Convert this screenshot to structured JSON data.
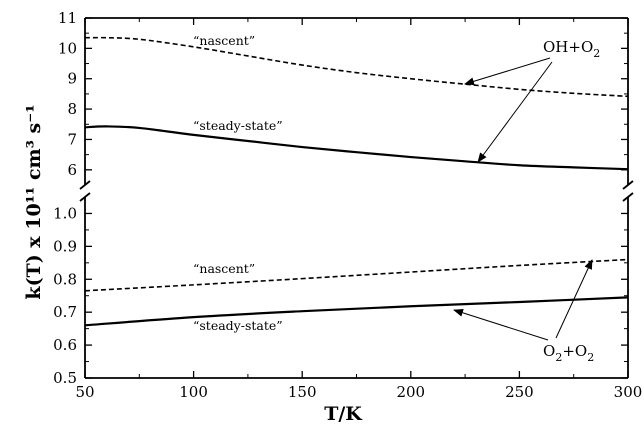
{
  "chart_data": {
    "type": "line",
    "xlabel": "T/K",
    "ylabel": "k(T) x 10¹¹ cm³ s⁻¹",
    "xlim": [
      50,
      300
    ],
    "x_ticks": [
      "50",
      "100",
      "150",
      "200",
      "250",
      "300"
    ],
    "axis_break": true,
    "upper_panel": {
      "ylim": [
        5.5,
        11
      ],
      "y_ticks": [
        "6",
        "7",
        "8",
        "9",
        "10",
        "11"
      ],
      "series": [
        {
          "label": "“nascent”",
          "style": "dashed",
          "x": [
            50,
            60,
            75,
            100,
            125,
            150,
            175,
            200,
            225,
            250,
            275,
            300
          ],
          "y": [
            10.35,
            10.35,
            10.3,
            10.05,
            9.75,
            9.45,
            9.2,
            9.0,
            8.82,
            8.65,
            8.52,
            8.42
          ]
        },
        {
          "label": "“steady-state”",
          "style": "solid",
          "x": [
            50,
            60,
            75,
            100,
            125,
            150,
            175,
            200,
            225,
            250,
            275,
            300
          ],
          "y": [
            7.4,
            7.43,
            7.38,
            7.15,
            6.95,
            6.75,
            6.58,
            6.42,
            6.28,
            6.15,
            6.08,
            6.02
          ]
        }
      ],
      "annotation": {
        "label": "OH+O",
        "subscript": "2"
      }
    },
    "lower_panel": {
      "ylim": [
        0.5,
        1.05
      ],
      "y_ticks": [
        "0.5",
        "0.6",
        "0.7",
        "0.8",
        "0.9",
        "1.0"
      ],
      "series": [
        {
          "label": "“nascent”",
          "style": "dashed",
          "x": [
            50,
            100,
            150,
            200,
            250,
            300
          ],
          "y": [
            0.765,
            0.783,
            0.802,
            0.822,
            0.842,
            0.86
          ]
        },
        {
          "label": "“steady-state”",
          "style": "solid",
          "x": [
            50,
            100,
            150,
            200,
            250,
            300
          ],
          "y": [
            0.66,
            0.685,
            0.703,
            0.718,
            0.731,
            0.745
          ]
        }
      ],
      "annotation": {
        "label": "O",
        "subscript": "2",
        "label2": "+O",
        "subscript2": "2"
      }
    }
  }
}
